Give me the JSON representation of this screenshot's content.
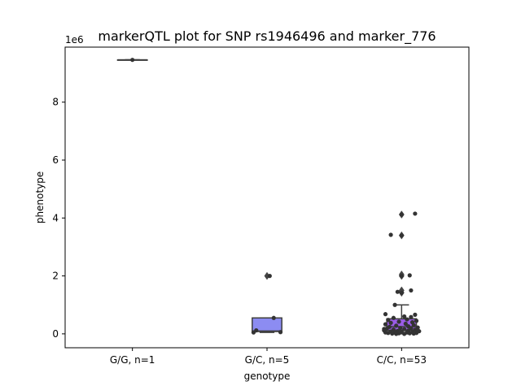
{
  "chart_data": {
    "type": "box",
    "title": "markerQTL plot for SNP rs1946496 and marker_776",
    "xlabel": "genotype",
    "ylabel": "phenotype",
    "y_scale_label": "1e6",
    "y_multiplier": 1000000,
    "ylim": [
      -0.48,
      9.9
    ],
    "yticks": [
      0,
      2,
      4,
      6,
      8
    ],
    "categories": [
      "G/G, n=1",
      "G/C, n=5",
      "C/C, n=53"
    ],
    "boxes": [
      {
        "category": "G/G, n=1",
        "q1": 9.46,
        "median": 9.46,
        "q3": 9.46,
        "whisker_low": 9.46,
        "whisker_high": 9.46,
        "color": "#8282ee",
        "outliers": []
      },
      {
        "category": "G/C, n=5",
        "q1": 0.08,
        "median": 0.1,
        "q3": 0.55,
        "whisker_low": 0.05,
        "whisker_high": 0.55,
        "color": "#8c8cf2",
        "outliers": [
          2.0
        ]
      },
      {
        "category": "C/C, n=53",
        "q1": 0.12,
        "median": 0.25,
        "q3": 0.52,
        "whisker_low": 0.0,
        "whisker_high": 1.0,
        "color": "#9a5ce6",
        "outliers": [
          1.42,
          1.5,
          2.0,
          2.05,
          3.4,
          4.12
        ]
      }
    ],
    "points": [
      {
        "category": 0,
        "y": 9.46,
        "j": 0
      },
      {
        "category": 1,
        "y": 2.0,
        "j": 0.02
      },
      {
        "category": 1,
        "y": 0.55,
        "j": 0.05
      },
      {
        "category": 1,
        "y": 0.12,
        "j": -0.08
      },
      {
        "category": 1,
        "y": 0.06,
        "j": 0.1
      },
      {
        "category": 1,
        "y": 0.05,
        "j": -0.1
      },
      {
        "category": 2,
        "y": 4.15,
        "j": 0.1
      },
      {
        "category": 2,
        "y": 4.12,
        "j": 0.0
      },
      {
        "category": 2,
        "y": 3.42,
        "j": -0.08
      },
      {
        "category": 2,
        "y": 3.4,
        "j": 0.0
      },
      {
        "category": 2,
        "y": 2.02,
        "j": 0.06
      },
      {
        "category": 2,
        "y": 2.0,
        "j": 0.0
      },
      {
        "category": 2,
        "y": 1.5,
        "j": 0.07
      },
      {
        "category": 2,
        "y": 1.45,
        "j": -0.03
      },
      {
        "category": 2,
        "y": 1.42,
        "j": 0.0
      },
      {
        "category": 2,
        "y": 1.0,
        "j": -0.05
      },
      {
        "category": 2,
        "y": 0.68,
        "j": -0.12
      },
      {
        "category": 2,
        "y": 0.66,
        "j": 0.1
      },
      {
        "category": 2,
        "y": 0.6,
        "j": 0.02
      },
      {
        "category": 2,
        "y": 0.58,
        "j": 0.07
      },
      {
        "category": 2,
        "y": 0.55,
        "j": -0.06
      },
      {
        "category": 2,
        "y": 0.5,
        "j": 0.04
      },
      {
        "category": 2,
        "y": 0.48,
        "j": -0.1
      },
      {
        "category": 2,
        "y": 0.45,
        "j": 0.11
      },
      {
        "category": 2,
        "y": 0.42,
        "j": -0.02
      },
      {
        "category": 2,
        "y": 0.4,
        "j": 0.08
      },
      {
        "category": 2,
        "y": 0.38,
        "j": -0.08
      },
      {
        "category": 2,
        "y": 0.35,
        "j": 0.03
      },
      {
        "category": 2,
        "y": 0.33,
        "j": -0.12
      },
      {
        "category": 2,
        "y": 0.3,
        "j": 0.09
      },
      {
        "category": 2,
        "y": 0.28,
        "j": -0.04
      },
      {
        "category": 2,
        "y": 0.26,
        "j": 0.05
      },
      {
        "category": 2,
        "y": 0.24,
        "j": -0.09
      },
      {
        "category": 2,
        "y": 0.22,
        "j": 0.12
      },
      {
        "category": 2,
        "y": 0.2,
        "j": -0.01
      },
      {
        "category": 2,
        "y": 0.19,
        "j": 0.07
      },
      {
        "category": 2,
        "y": 0.18,
        "j": -0.11
      },
      {
        "category": 2,
        "y": 0.16,
        "j": 0.02
      },
      {
        "category": 2,
        "y": 0.15,
        "j": -0.06
      },
      {
        "category": 2,
        "y": 0.14,
        "j": 0.1
      },
      {
        "category": 2,
        "y": 0.12,
        "j": -0.13
      },
      {
        "category": 2,
        "y": 0.11,
        "j": 0.05
      },
      {
        "category": 2,
        "y": 0.1,
        "j": -0.03
      },
      {
        "category": 2,
        "y": 0.09,
        "j": 0.13
      },
      {
        "category": 2,
        "y": 0.08,
        "j": -0.08
      },
      {
        "category": 2,
        "y": 0.07,
        "j": 0.0
      },
      {
        "category": 2,
        "y": 0.06,
        "j": 0.08
      },
      {
        "category": 2,
        "y": 0.05,
        "j": -0.12
      },
      {
        "category": 2,
        "y": 0.05,
        "j": 0.04
      },
      {
        "category": 2,
        "y": 0.04,
        "j": -0.05
      },
      {
        "category": 2,
        "y": 0.03,
        "j": 0.11
      },
      {
        "category": 2,
        "y": 0.03,
        "j": -0.1
      },
      {
        "category": 2,
        "y": 0.02,
        "j": 0.06
      },
      {
        "category": 2,
        "y": 0.02,
        "j": -0.02
      },
      {
        "category": 2,
        "y": 0.01,
        "j": 0.09
      },
      {
        "category": 2,
        "y": 0.01,
        "j": -0.07
      },
      {
        "category": 2,
        "y": 0.0,
        "j": 0.02
      },
      {
        "category": 2,
        "y": 0.0,
        "j": -0.04
      },
      {
        "category": 2,
        "y": 0.13,
        "j": 0.12
      },
      {
        "category": 2,
        "y": 0.17,
        "j": -0.13
      }
    ]
  }
}
